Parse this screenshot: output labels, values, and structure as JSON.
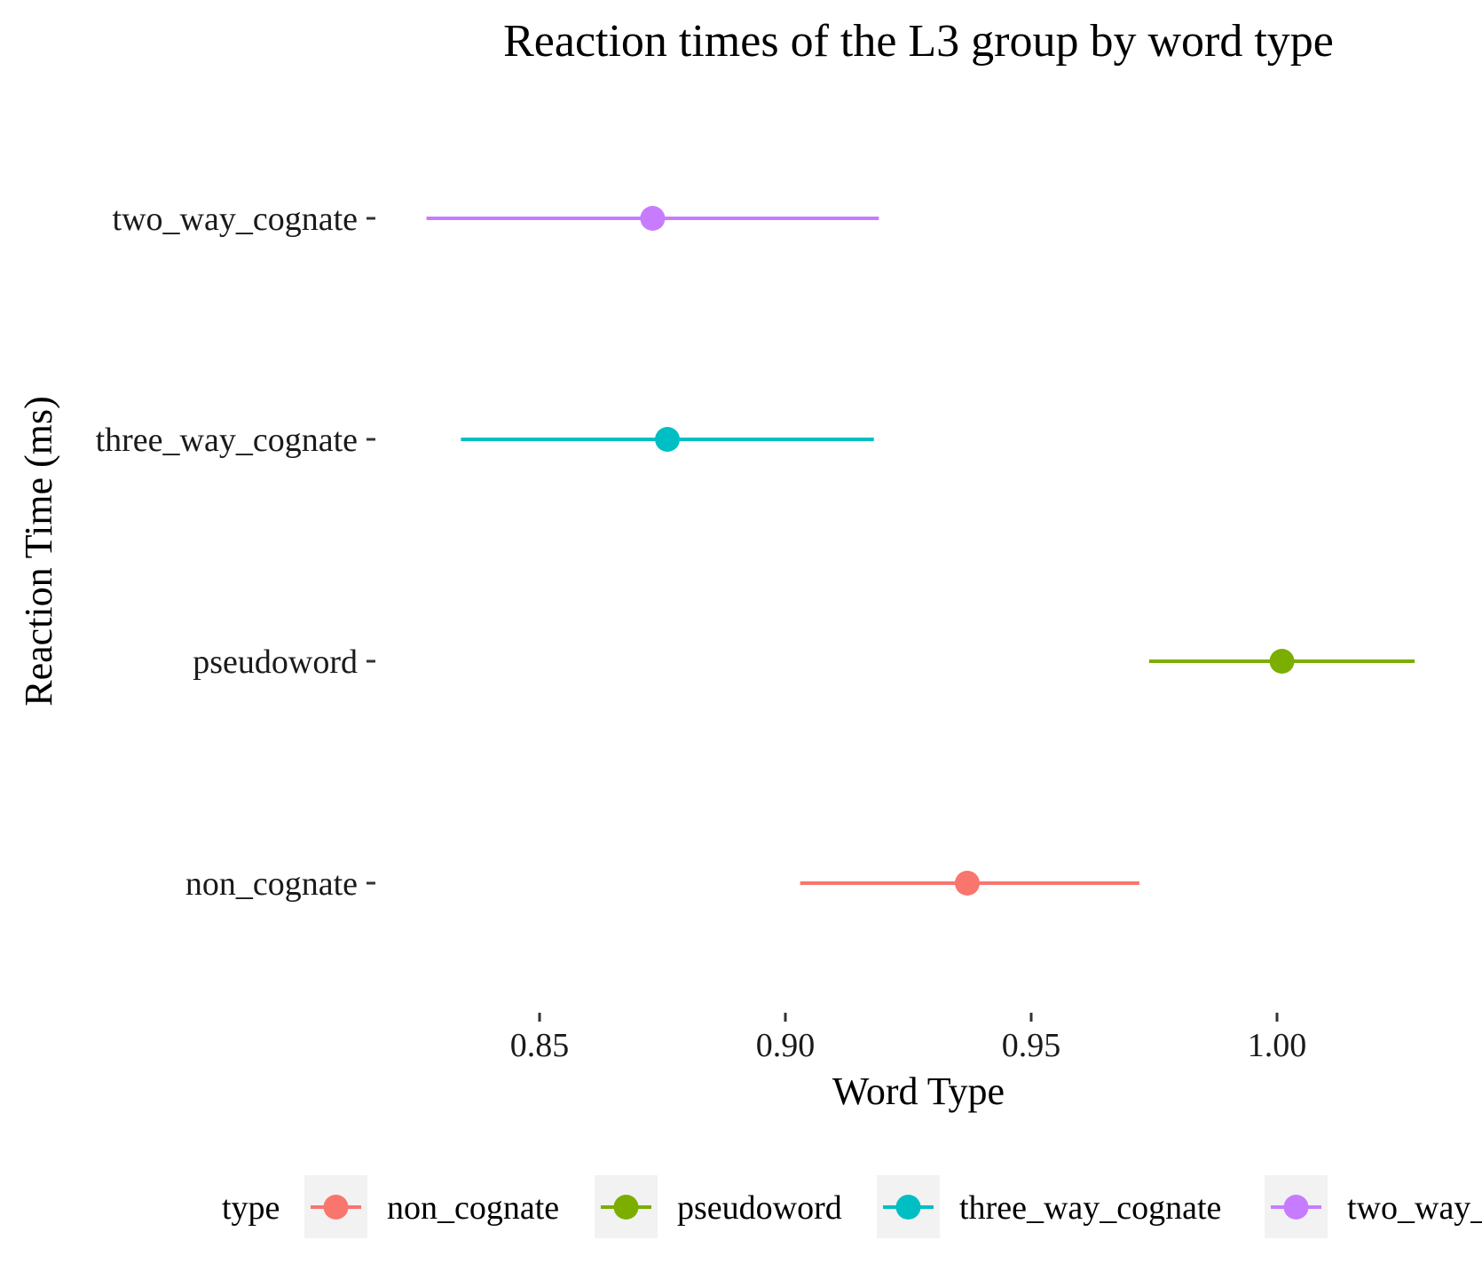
{
  "chart_data": {
    "type": "dot-errorbar",
    "title": "Reaction times of the L3 group by word type",
    "xlabel": "Word Type",
    "ylabel": "Reaction Time (ms)",
    "xlim": [
      0.815,
      1.035
    ],
    "xticks": [
      0.85,
      0.9,
      0.95,
      1.0
    ],
    "xtick_labels": [
      "0.85",
      "0.90",
      "0.95",
      "1.00"
    ],
    "categories": [
      "non_cognate",
      "pseudoword",
      "three_way_cognate",
      "two_way_cognate"
    ],
    "series": [
      {
        "name": "non_cognate",
        "color": "#F8766D",
        "mean": 0.937,
        "lower": 0.903,
        "upper": 0.972
      },
      {
        "name": "pseudoword",
        "color": "#7CAE00",
        "mean": 1.001,
        "lower": 0.974,
        "upper": 1.028
      },
      {
        "name": "three_way_cognate",
        "color": "#00BFC4",
        "mean": 0.876,
        "lower": 0.834,
        "upper": 0.918
      },
      {
        "name": "two_way_cognate",
        "color": "#C77CFF",
        "mean": 0.873,
        "lower": 0.827,
        "upper": 0.919
      }
    ],
    "legend": {
      "title": "type",
      "position": "bottom",
      "entries": [
        "non_cognate",
        "pseudoword",
        "three_way_cognate",
        "two_way_cognate"
      ]
    },
    "grid": false
  }
}
